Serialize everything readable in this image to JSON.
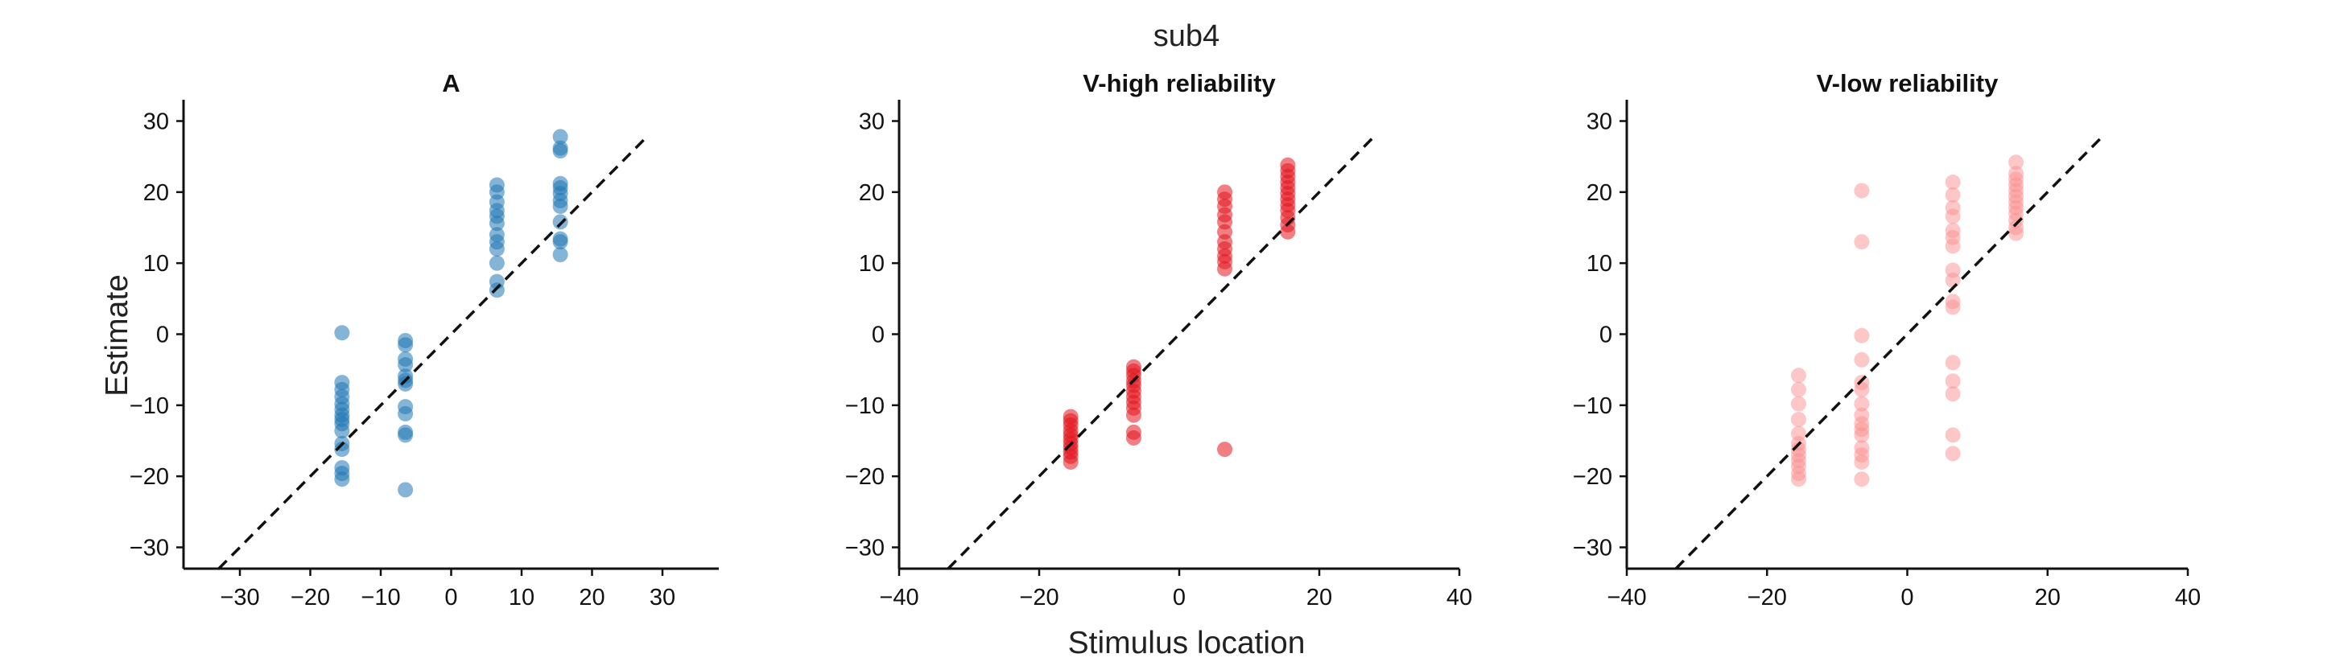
{
  "figure": {
    "title": "sub4",
    "xlabel": "Stimulus location",
    "ylabel": "Estimate"
  },
  "chart_data": [
    {
      "type": "scatter",
      "title": "A",
      "xlim": [
        -38,
        38
      ],
      "ylim": [
        -33,
        33
      ],
      "xticks": [
        -30,
        -20,
        -10,
        0,
        10,
        20,
        30
      ],
      "yticks": [
        -30,
        -20,
        -10,
        0,
        10,
        20,
        30
      ],
      "identity_line": true,
      "color": "#1f77b4",
      "opacity": 0.55,
      "points": [
        [
          -15.5,
          0.2
        ],
        [
          -15.5,
          -6.8
        ],
        [
          -15.5,
          -7.8
        ],
        [
          -15.5,
          -8.8
        ],
        [
          -15.5,
          -9.8
        ],
        [
          -15.5,
          -10.6
        ],
        [
          -15.5,
          -11.4
        ],
        [
          -15.5,
          -12.0
        ],
        [
          -15.5,
          -12.6
        ],
        [
          -15.5,
          -13.6
        ],
        [
          -15.5,
          -15.4
        ],
        [
          -15.5,
          -16.2
        ],
        [
          -15.5,
          -18.8
        ],
        [
          -15.5,
          -19.6
        ],
        [
          -15.5,
          -20.4
        ],
        [
          -6.5,
          -0.9
        ],
        [
          -6.5,
          -1.5
        ],
        [
          -6.5,
          -3.5
        ],
        [
          -6.5,
          -4.3
        ],
        [
          -6.5,
          -5.9
        ],
        [
          -6.5,
          -6.5
        ],
        [
          -6.5,
          -7.0
        ],
        [
          -6.5,
          -10.2
        ],
        [
          -6.5,
          -11.2
        ],
        [
          -6.5,
          -13.8
        ],
        [
          -6.5,
          -14.2
        ],
        [
          -6.5,
          -21.9
        ],
        [
          6.5,
          21.0
        ],
        [
          6.5,
          20.0
        ],
        [
          6.5,
          18.6
        ],
        [
          6.5,
          17.4
        ],
        [
          6.5,
          16.6
        ],
        [
          6.5,
          15.6
        ],
        [
          6.5,
          14.0
        ],
        [
          6.5,
          13.0
        ],
        [
          6.5,
          12.0
        ],
        [
          6.5,
          10.0
        ],
        [
          6.5,
          7.4
        ],
        [
          6.5,
          6.2
        ],
        [
          15.5,
          27.8
        ],
        [
          15.5,
          26.2
        ],
        [
          15.5,
          25.8
        ],
        [
          15.5,
          21.2
        ],
        [
          15.5,
          20.6
        ],
        [
          15.5,
          19.8
        ],
        [
          15.5,
          18.8
        ],
        [
          15.5,
          18.0
        ],
        [
          15.5,
          15.8
        ],
        [
          15.5,
          13.4
        ],
        [
          15.5,
          13.0
        ],
        [
          15.5,
          11.2
        ]
      ]
    },
    {
      "type": "scatter",
      "title": "V-high reliability",
      "xlim": [
        -40,
        40
      ],
      "ylim": [
        -33,
        33
      ],
      "xticks": [
        -40,
        -20,
        0,
        20,
        40
      ],
      "yticks": [
        -30,
        -20,
        -10,
        0,
        10,
        20,
        30
      ],
      "identity_line": true,
      "color": "#e3141d",
      "opacity": 0.55,
      "points": [
        [
          -15.5,
          -11.6
        ],
        [
          -15.5,
          -12.2
        ],
        [
          -15.5,
          -12.8
        ],
        [
          -15.5,
          -13.6
        ],
        [
          -15.5,
          -14.2
        ],
        [
          -15.5,
          -14.8
        ],
        [
          -15.5,
          -15.4
        ],
        [
          -15.5,
          -16.0
        ],
        [
          -15.5,
          -16.6
        ],
        [
          -15.5,
          -17.2
        ],
        [
          -15.5,
          -18.0
        ],
        [
          -6.5,
          -4.6
        ],
        [
          -6.5,
          -5.2
        ],
        [
          -6.5,
          -5.8
        ],
        [
          -6.5,
          -6.6
        ],
        [
          -6.5,
          -7.2
        ],
        [
          -6.5,
          -8.0
        ],
        [
          -6.5,
          -8.8
        ],
        [
          -6.5,
          -9.6
        ],
        [
          -6.5,
          -10.4
        ],
        [
          -6.5,
          -11.4
        ],
        [
          -6.5,
          -13.8
        ],
        [
          -6.5,
          -14.6
        ],
        [
          6.5,
          -16.2
        ],
        [
          6.5,
          20.0
        ],
        [
          6.5,
          19.0
        ],
        [
          6.5,
          18.0
        ],
        [
          6.5,
          16.8
        ],
        [
          6.5,
          15.8
        ],
        [
          6.5,
          14.4
        ],
        [
          6.5,
          13.0
        ],
        [
          6.5,
          12.0
        ],
        [
          6.5,
          11.0
        ],
        [
          6.5,
          10.2
        ],
        [
          6.5,
          9.2
        ],
        [
          15.5,
          23.8
        ],
        [
          15.5,
          23.0
        ],
        [
          15.5,
          22.2
        ],
        [
          15.5,
          21.4
        ],
        [
          15.5,
          20.6
        ],
        [
          15.5,
          19.8
        ],
        [
          15.5,
          19.0
        ],
        [
          15.5,
          18.2
        ],
        [
          15.5,
          17.4
        ],
        [
          15.5,
          16.4
        ],
        [
          15.5,
          15.4
        ],
        [
          15.5,
          14.4
        ]
      ]
    },
    {
      "type": "scatter",
      "title": "V-low reliability",
      "xlim": [
        -40,
        40
      ],
      "ylim": [
        -33,
        33
      ],
      "xticks": [
        -40,
        -20,
        0,
        20,
        40
      ],
      "yticks": [
        -30,
        -20,
        -10,
        0,
        10,
        20,
        30
      ],
      "identity_line": true,
      "color": "#fb8f8f",
      "opacity": 0.5,
      "points": [
        [
          -15.5,
          -5.8
        ],
        [
          -15.5,
          -7.8
        ],
        [
          -15.5,
          -9.8
        ],
        [
          -15.5,
          -12.0
        ],
        [
          -15.5,
          -14.0
        ],
        [
          -15.5,
          -15.4
        ],
        [
          -15.5,
          -16.2
        ],
        [
          -15.5,
          -17.0
        ],
        [
          -15.5,
          -17.8
        ],
        [
          -15.5,
          -18.6
        ],
        [
          -15.5,
          -19.6
        ],
        [
          -15.5,
          -20.4
        ],
        [
          -6.5,
          20.2
        ],
        [
          -6.5,
          13.0
        ],
        [
          -6.5,
          -0.2
        ],
        [
          -6.5,
          -3.6
        ],
        [
          -6.5,
          -6.8
        ],
        [
          -6.5,
          -7.8
        ],
        [
          -6.5,
          -9.8
        ],
        [
          -6.5,
          -11.4
        ],
        [
          -6.5,
          -12.6
        ],
        [
          -6.5,
          -13.4
        ],
        [
          -6.5,
          -14.2
        ],
        [
          -6.5,
          -16.0
        ],
        [
          -6.5,
          -17.0
        ],
        [
          -6.5,
          -18.0
        ],
        [
          -6.5,
          -20.4
        ],
        [
          6.5,
          21.4
        ],
        [
          6.5,
          19.6
        ],
        [
          6.5,
          17.8
        ],
        [
          6.5,
          16.6
        ],
        [
          6.5,
          14.6
        ],
        [
          6.5,
          13.6
        ],
        [
          6.5,
          12.4
        ],
        [
          6.5,
          9.0
        ],
        [
          6.5,
          7.6
        ],
        [
          6.5,
          4.6
        ],
        [
          6.5,
          3.8
        ],
        [
          6.5,
          -4.0
        ],
        [
          6.5,
          -6.6
        ],
        [
          6.5,
          -8.4
        ],
        [
          6.5,
          -14.2
        ],
        [
          6.5,
          -16.8
        ],
        [
          15.5,
          24.2
        ],
        [
          15.5,
          22.6
        ],
        [
          15.5,
          21.8
        ],
        [
          15.5,
          21.0
        ],
        [
          15.5,
          20.2
        ],
        [
          15.5,
          19.4
        ],
        [
          15.5,
          18.6
        ],
        [
          15.5,
          17.8
        ],
        [
          15.5,
          17.0
        ],
        [
          15.5,
          16.0
        ],
        [
          15.5,
          15.0
        ],
        [
          15.5,
          14.2
        ]
      ]
    }
  ]
}
